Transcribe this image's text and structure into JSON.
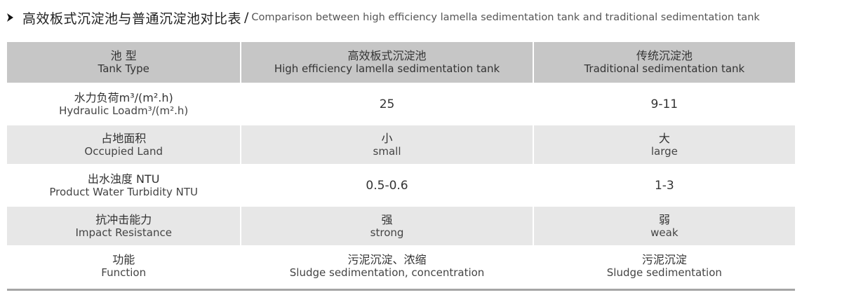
{
  "title": {
    "cn": "高效板式沉淀池与普通沉淀池对比表",
    "sep": "/",
    "en": "Comparison between high efficiency lamella sedimentation tank and traditional sedimentation tank"
  },
  "header": {
    "col1": {
      "cn": "池 型",
      "en": "Tank Type"
    },
    "col2": {
      "cn": "高效板式沉淀池",
      "en": "High efficiency lamella sedimentation tank"
    },
    "col3": {
      "cn": "传统沉淀池",
      "en": "Traditional sedimentation tank"
    }
  },
  "rows": [
    {
      "label_cn": "水力负荷m³/(m².h)",
      "label_en": "Hydraulic Loadm³/(m².h)",
      "col2": "25",
      "col3": "9-11"
    },
    {
      "label_cn": "占地面积",
      "label_en": "Occupied Land",
      "col2_cn": "小",
      "col2_en": "small",
      "col3_cn": "大",
      "col3_en": "large"
    },
    {
      "label_cn": "出水浊度 NTU",
      "label_en": "Product Water Turbidity NTU",
      "col2": "0.5-0.6",
      "col3": "1-3"
    },
    {
      "label_cn": "抗冲击能力",
      "label_en": "Impact Resistance",
      "col2_cn": "强",
      "col2_en": "strong",
      "col3_cn": "弱",
      "col3_en": "weak"
    },
    {
      "label_cn": "功能",
      "label_en": "Function",
      "col2_cn": "污泥沉淀、浓缩",
      "col2_en": "Sludge sedimentation, concentration",
      "col3_cn": "污泥沉淀",
      "col3_en": "Sludge sedimentation"
    }
  ],
  "colors": {
    "header_bg": "#c6c6c6",
    "shaded_bg": "#e7e7e7",
    "rule": "#a6a6a6"
  }
}
